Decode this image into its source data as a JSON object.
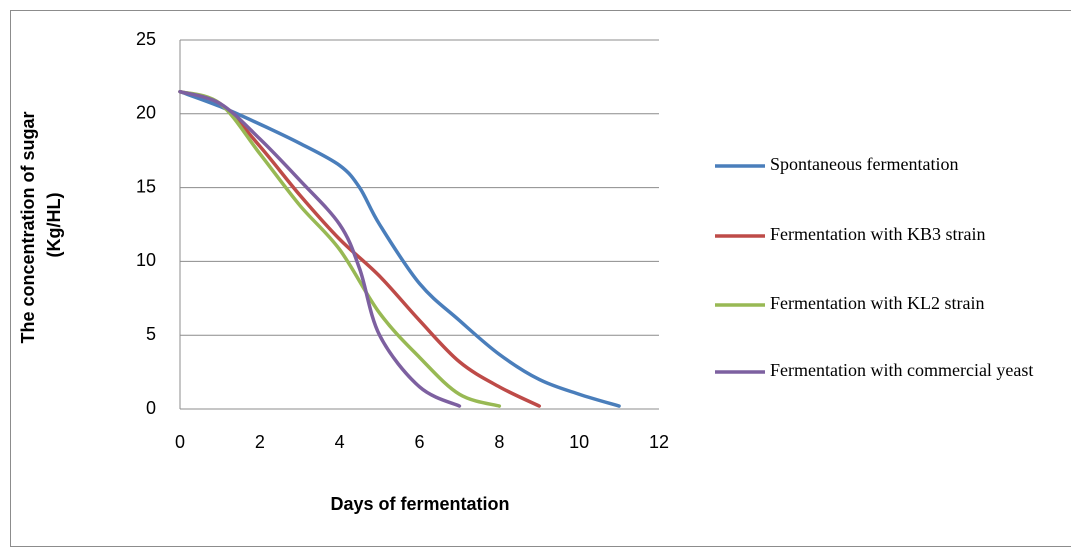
{
  "chart_data": {
    "type": "line",
    "xlabel": "Days of fermentation",
    "ylabel": "The concentration of sugar (Kg/HL)",
    "xlim": [
      0,
      12
    ],
    "xticks": [
      0,
      2,
      4,
      6,
      8,
      10,
      12
    ],
    "ylim": [
      0,
      25
    ],
    "yticks": [
      0,
      5,
      10,
      15,
      20,
      25
    ],
    "grid": true,
    "legend": "right",
    "smooth": true,
    "series": [
      {
        "name": "Spontaneous fermentation",
        "color": "#4a7ebb",
        "x": [
          0,
          1,
          2,
          3,
          4,
          4.5,
          5,
          6,
          7,
          8,
          9,
          10,
          11
        ],
        "values": [
          21.5,
          20.5,
          19.3,
          18,
          16.5,
          15,
          12.5,
          8.5,
          6,
          3.7,
          2,
          1,
          0.2
        ]
      },
      {
        "name": "Fermentation with KB3 strain",
        "color": "#be4b48",
        "x": [
          0,
          1,
          2,
          3,
          4,
          5,
          6,
          7,
          8,
          9
        ],
        "values": [
          21.5,
          20.7,
          17.8,
          14.5,
          11.5,
          9,
          6,
          3.2,
          1.5,
          0.2
        ]
      },
      {
        "name": "Fermentation with KL2 strain",
        "color": "#98b954",
        "x": [
          0,
          1,
          2,
          3,
          4,
          5,
          6,
          7,
          8
        ],
        "values": [
          21.5,
          20.7,
          17.3,
          13.8,
          10.8,
          6.5,
          3.5,
          1,
          0.2
        ]
      },
      {
        "name": "Fermentation with commercial yeast",
        "color": "#7d60a0",
        "x": [
          0,
          1,
          2,
          3,
          4,
          4.5,
          5,
          6,
          7
        ],
        "values": [
          21.5,
          20.7,
          18.3,
          15.5,
          12.5,
          9.5,
          5,
          1.5,
          0.2
        ]
      }
    ]
  }
}
